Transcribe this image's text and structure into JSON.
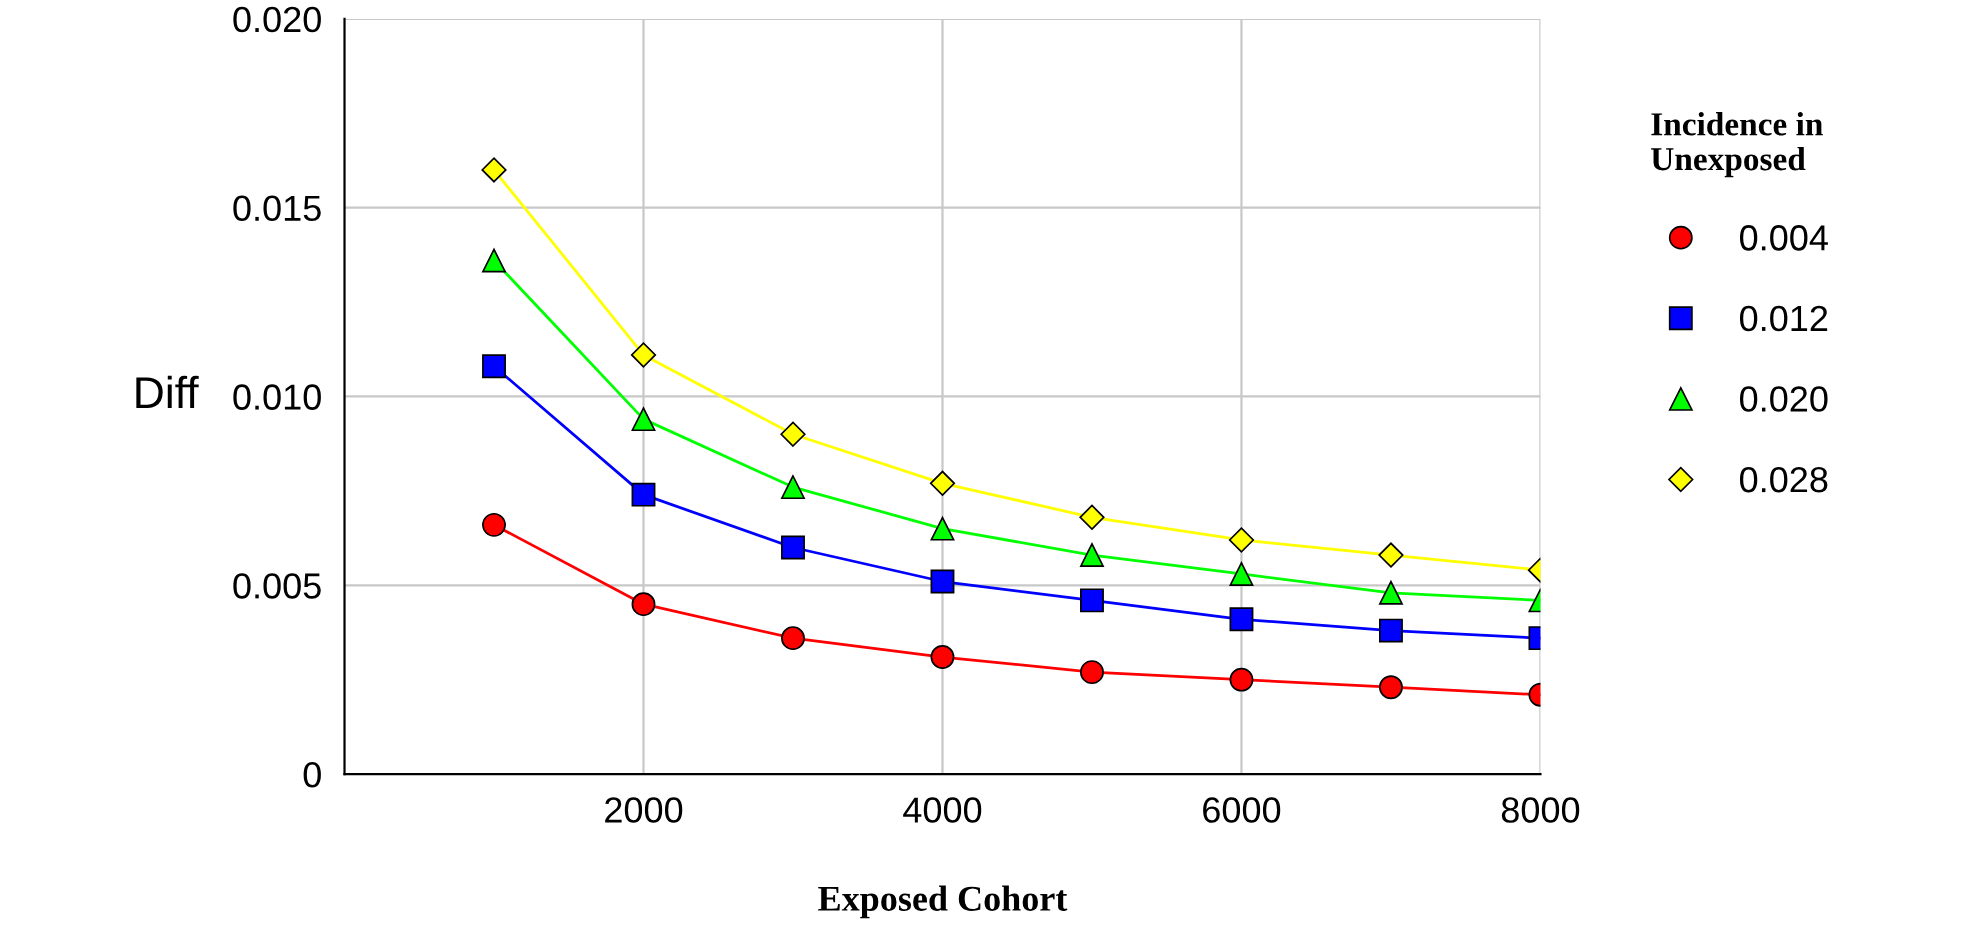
{
  "chart_data": {
    "type": "line",
    "xlabel": "Exposed Cohort",
    "ylabel": "Diff",
    "legend_title": "Incidence in\nUnexposed",
    "legend": "right",
    "grid": true,
    "x": [
      1000,
      2000,
      3000,
      4000,
      5000,
      6000,
      7000,
      8000
    ],
    "xlim": [
      0,
      8000
    ],
    "xticks": [
      2000,
      4000,
      6000,
      8000
    ],
    "ylim": [
      0,
      0.02
    ],
    "yticks": [
      {
        "value": 0,
        "label": "0"
      },
      {
        "value": 0.005,
        "label": "0.005"
      },
      {
        "value": 0.01,
        "label": "0.010"
      },
      {
        "value": 0.015,
        "label": "0.015"
      },
      {
        "value": 0.02,
        "label": "0.020"
      }
    ],
    "series": [
      {
        "name": "0.004",
        "color": "#ff0000",
        "marker": "circle",
        "values": [
          0.0066,
          0.0045,
          0.0036,
          0.0031,
          0.0027,
          0.0025,
          0.0023,
          0.0021
        ]
      },
      {
        "name": "0.012",
        "color": "#0000ff",
        "marker": "square",
        "values": [
          0.0108,
          0.0074,
          0.006,
          0.0051,
          0.0046,
          0.0041,
          0.0038,
          0.0036
        ]
      },
      {
        "name": "0.020",
        "color": "#00ff00",
        "marker": "triangle",
        "values": [
          0.0136,
          0.0094,
          0.0076,
          0.0065,
          0.0058,
          0.0053,
          0.0048,
          0.0046
        ]
      },
      {
        "name": "0.028",
        "color": "#ffff00",
        "marker": "diamond",
        "values": [
          0.016,
          0.0111,
          0.009,
          0.0077,
          0.0068,
          0.0062,
          0.0058,
          0.0054
        ]
      }
    ]
  }
}
